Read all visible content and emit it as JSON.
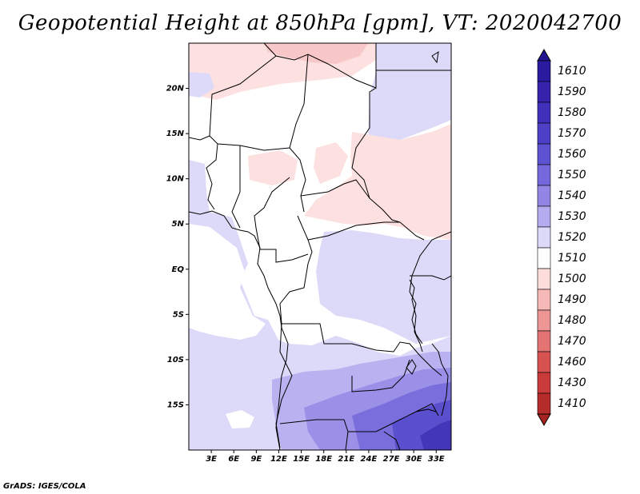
{
  "title": "Geopotential Height at 850hPa [gpm], VT: 2020042700",
  "credit": "GrADS: IGES/COLA",
  "map": {
    "lon_range": [
      0,
      35
    ],
    "lat_range": [
      -20,
      25
    ],
    "lat_ticks": [
      {
        "value": 20,
        "label": "20N"
      },
      {
        "value": 15,
        "label": "15N"
      },
      {
        "value": 10,
        "label": "10N"
      },
      {
        "value": 5,
        "label": "5N"
      },
      {
        "value": 0,
        "label": "EQ"
      },
      {
        "value": -5,
        "label": "5S"
      },
      {
        "value": -10,
        "label": "10S"
      },
      {
        "value": -15,
        "label": "15S"
      }
    ],
    "lon_ticks": [
      {
        "value": 3,
        "label": "3E"
      },
      {
        "value": 6,
        "label": "6E"
      },
      {
        "value": 9,
        "label": "9E"
      },
      {
        "value": 12,
        "label": "12E"
      },
      {
        "value": 15,
        "label": "15E"
      },
      {
        "value": 18,
        "label": "18E"
      },
      {
        "value": 21,
        "label": "21E"
      },
      {
        "value": 24,
        "label": "24E"
      },
      {
        "value": 27,
        "label": "27E"
      },
      {
        "value": 30,
        "label": "30E"
      },
      {
        "value": 33,
        "label": "33E"
      }
    ]
  },
  "colorbar": {
    "levels": [
      {
        "label": "1610",
        "color": "#2a1aa0"
      },
      {
        "label": "1590",
        "color": "#3522ad"
      },
      {
        "label": "1580",
        "color": "#4030bb"
      },
      {
        "label": "1570",
        "color": "#4e40c6"
      },
      {
        "label": "1560",
        "color": "#5d52d2"
      },
      {
        "label": "1550",
        "color": "#7568dc"
      },
      {
        "label": "1540",
        "color": "#9185e5"
      },
      {
        "label": "1530",
        "color": "#b4acef"
      },
      {
        "label": "1520",
        "color": "#dcdaf8"
      },
      {
        "label": "1510",
        "color": "#ffffff"
      },
      {
        "label": "1500",
        "color": "#fddcdc"
      },
      {
        "label": "1490",
        "color": "#f7b8b8"
      },
      {
        "label": "1480",
        "color": "#ee9696"
      },
      {
        "label": "1470",
        "color": "#e47474"
      },
      {
        "label": "1460",
        "color": "#d85252"
      },
      {
        "label": "1430",
        "color": "#c93a3a"
      },
      {
        "label": "1410",
        "color": "#b52a2a"
      }
    ],
    "top_color": "#241690",
    "bottom_color": "#a82222"
  },
  "field_colors": {
    "lightpink": "#fde0e0",
    "pink": "#f8c8c8",
    "white": "#ffffff",
    "lavender": "#dcdaf8",
    "blue1": "#b9b2f0",
    "blue2": "#9a90e8",
    "blue3": "#7a6edc",
    "blue4": "#5a4fcc",
    "blue5": "#4336b8",
    "border": "#000000"
  }
}
